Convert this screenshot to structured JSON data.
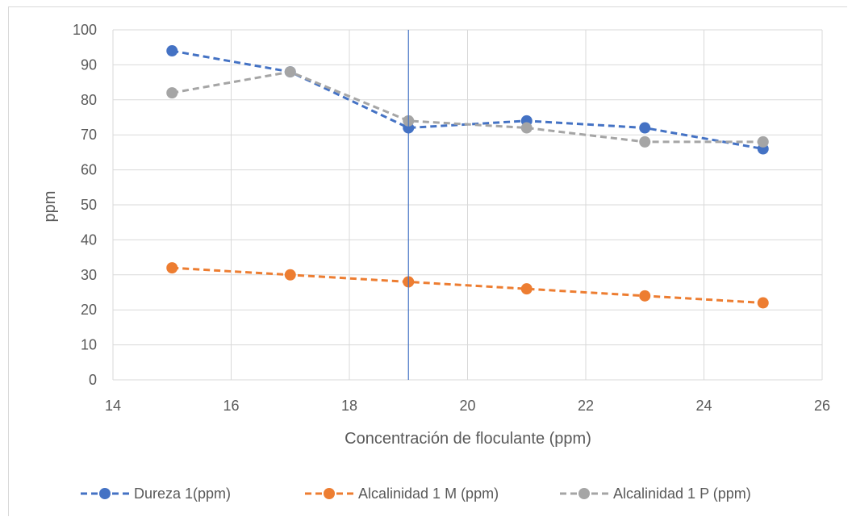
{
  "chart_data": {
    "type": "scatter",
    "title": "",
    "xlabel": "Concentración de floculante (ppm)",
    "ylabel": "ppm",
    "xlim": [
      14,
      26
    ],
    "ylim": [
      0,
      100
    ],
    "xticks": [
      14,
      16,
      18,
      20,
      22,
      24,
      26
    ],
    "yticks": [
      0,
      10,
      20,
      30,
      40,
      50,
      60,
      70,
      80,
      90,
      100
    ],
    "grid": true,
    "legend": "bottom",
    "line_style": "dashed with markers",
    "reference_line": {
      "x": 19,
      "color": "#4472c4"
    },
    "x": [
      15,
      17,
      19,
      21,
      23,
      25
    ],
    "series": [
      {
        "name": "Dureza 1(ppm)",
        "color": "#4472c4",
        "values": [
          94,
          88,
          72,
          74,
          72,
          66
        ]
      },
      {
        "name": "Alcalinidad 1 M (ppm)",
        "color": "#ed7d31",
        "values": [
          32,
          30,
          28,
          26,
          24,
          22
        ]
      },
      {
        "name": "Alcalinidad 1 P (ppm)",
        "color": "#a5a5a5",
        "values": [
          82,
          88,
          74,
          72,
          68,
          68
        ]
      }
    ]
  }
}
